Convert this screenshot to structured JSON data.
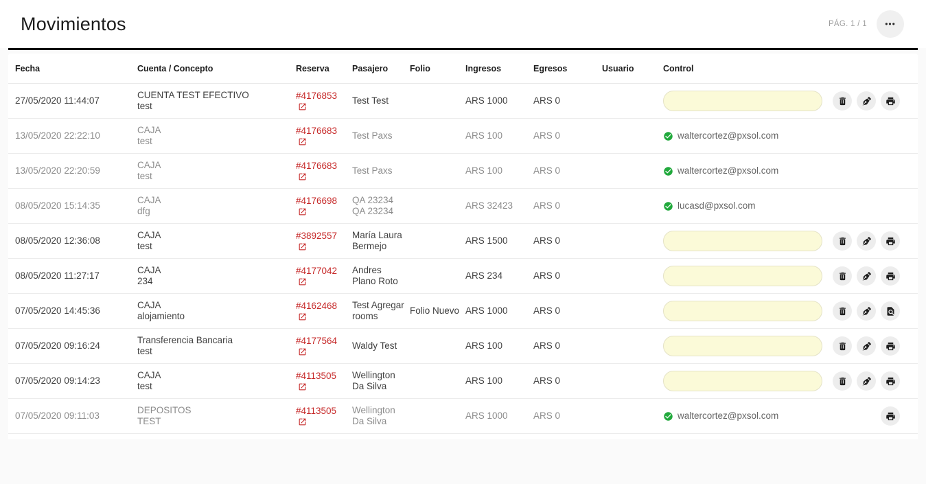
{
  "header": {
    "title": "Movimientos",
    "pagination": "PÁG. 1 / 1",
    "menu_icon": "ellipsis-icon",
    "menu_glyph": "•••"
  },
  "table": {
    "columns": [
      "Fecha",
      "Cuenta / Concepto",
      "Reserva",
      "Pasajero",
      "Folio",
      "Ingresos",
      "Egresos",
      "Usuario",
      "Control"
    ],
    "rows": [
      {
        "fecha": "27/05/2020 11:44:07",
        "cuenta": "CUENTA TEST EFECTIVO",
        "concepto": "test",
        "reserva": "#4176853",
        "pasajero": "Test Test",
        "folio": "",
        "ingresos": "ARS 1000",
        "egresos": "ARS 0",
        "usuario": "",
        "state": "pending",
        "control": {
          "type": "input",
          "value": "",
          "actions": [
            "delete",
            "edit",
            "print"
          ]
        }
      },
      {
        "fecha": "13/05/2020 22:22:10",
        "cuenta": "CAJA",
        "concepto": "test",
        "reserva": "#4176683",
        "pasajero": "Test Paxs",
        "folio": "",
        "ingresos": "ARS 100",
        "egresos": "ARS 0",
        "usuario": "",
        "state": "done",
        "control": {
          "type": "user",
          "email": "waltercortez@pxsol.com",
          "actions": []
        }
      },
      {
        "fecha": "13/05/2020 22:20:59",
        "cuenta": "CAJA",
        "concepto": "test",
        "reserva": "#4176683",
        "pasajero": "Test Paxs",
        "folio": "",
        "ingresos": "ARS 100",
        "egresos": "ARS 0",
        "usuario": "",
        "state": "done",
        "control": {
          "type": "user",
          "email": "waltercortez@pxsol.com",
          "actions": []
        }
      },
      {
        "fecha": "08/05/2020 15:14:35",
        "cuenta": "CAJA",
        "concepto": "dfg",
        "reserva": "#4176698",
        "pasajero": "QA 23234 QA 23234",
        "folio": "",
        "ingresos": "ARS 32423",
        "egresos": "ARS 0",
        "usuario": "",
        "state": "done",
        "control": {
          "type": "user",
          "email": "lucasd@pxsol.com",
          "actions": []
        }
      },
      {
        "fecha": "08/05/2020 12:36:08",
        "cuenta": "CAJA",
        "concepto": "test",
        "reserva": "#3892557",
        "pasajero": "María Laura Bermejo",
        "folio": "",
        "ingresos": "ARS 1500",
        "egresos": "ARS 0",
        "usuario": "",
        "state": "pending",
        "control": {
          "type": "input",
          "value": "",
          "actions": [
            "delete",
            "edit",
            "print"
          ]
        }
      },
      {
        "fecha": "08/05/2020 11:27:17",
        "cuenta": "CAJA",
        "concepto": "234",
        "reserva": "#4177042",
        "pasajero": "Andres Plano Roto",
        "folio": "",
        "ingresos": "ARS 234",
        "egresos": "ARS 0",
        "usuario": "",
        "state": "pending",
        "control": {
          "type": "input",
          "value": "",
          "actions": [
            "delete",
            "edit",
            "print"
          ]
        }
      },
      {
        "fecha": "07/05/2020 14:45:36",
        "cuenta": "CAJA",
        "concepto": "alojamiento",
        "reserva": "#4162468",
        "pasajero": "Test Agregar rooms",
        "folio": "Folio Nuevo",
        "ingresos": "ARS 1000",
        "egresos": "ARS 0",
        "usuario": "",
        "state": "pending",
        "control": {
          "type": "input",
          "value": "",
          "actions": [
            "delete",
            "edit",
            "print-preview"
          ]
        }
      },
      {
        "fecha": "07/05/2020 09:16:24",
        "cuenta": "Transferencia Bancaria",
        "concepto": "test",
        "reserva": "#4177564",
        "pasajero": "Waldy Test",
        "folio": "",
        "ingresos": "ARS 100",
        "egresos": "ARS 0",
        "usuario": "",
        "state": "pending",
        "control": {
          "type": "input",
          "value": "",
          "actions": [
            "delete",
            "edit",
            "print"
          ]
        }
      },
      {
        "fecha": "07/05/2020 09:14:23",
        "cuenta": "CAJA",
        "concepto": "test",
        "reserva": "#4113505",
        "pasajero": "Wellington Da Silva",
        "folio": "",
        "ingresos": "ARS 100",
        "egresos": "ARS 0",
        "usuario": "",
        "state": "pending",
        "control": {
          "type": "input",
          "value": "",
          "actions": [
            "delete",
            "edit",
            "print"
          ]
        }
      },
      {
        "fecha": "07/05/2020 09:11:03",
        "cuenta": "DEPOSITOS",
        "concepto": "TEST",
        "reserva": "#4113505",
        "pasajero": "Wellington Da Silva",
        "folio": "",
        "ingresos": "ARS 1000",
        "egresos": "ARS 0",
        "usuario": "",
        "state": "done",
        "control": {
          "type": "user",
          "email": "waltercortez@pxsol.com",
          "actions": [
            "print"
          ]
        }
      }
    ]
  },
  "icons": {
    "reserva_link": "external-link-icon",
    "done_check": "check-circle-icon",
    "actions": {
      "delete": "trash-icon",
      "edit": "pen-icon",
      "print": "printer-icon",
      "print-preview": "document-search-icon"
    }
  },
  "colors": {
    "accent_red": "#c62828",
    "success_green": "#21a93c",
    "control_input_bg": "#fbfad8",
    "page_bg": "#fafafa",
    "dark_text": "#3f3f3f",
    "muted_text": "#8c8c8c",
    "divider_bar": "#000000"
  }
}
